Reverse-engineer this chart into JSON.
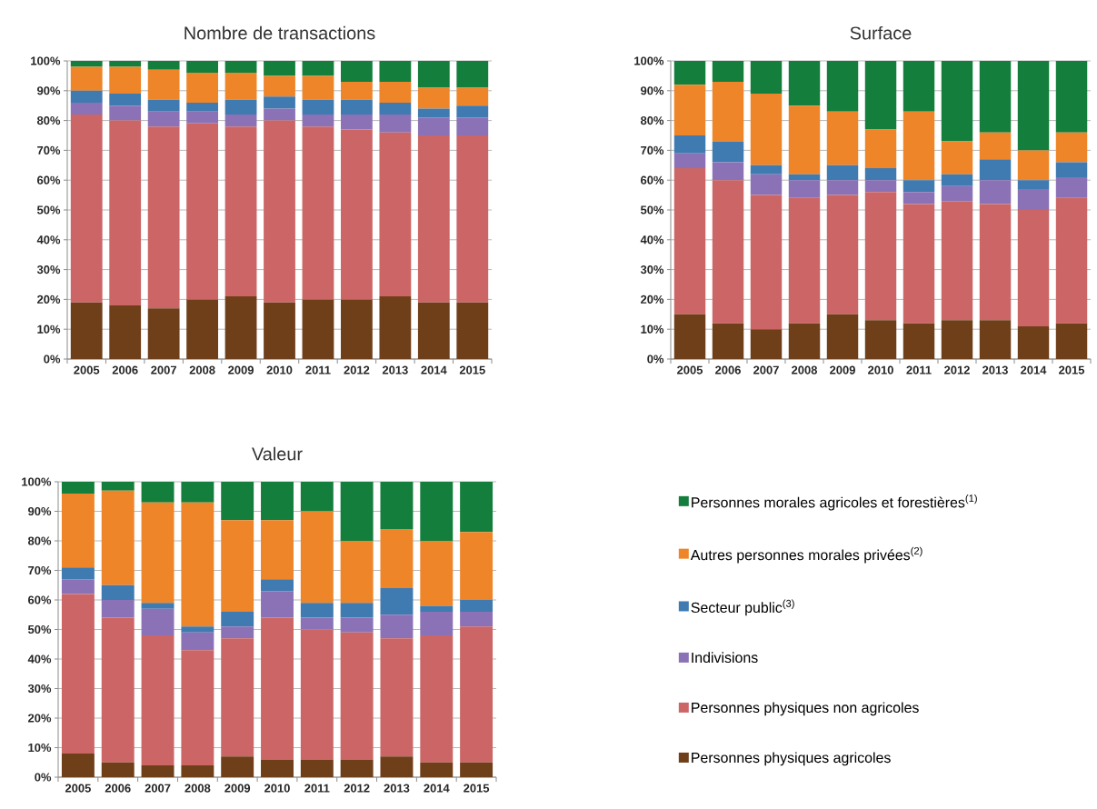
{
  "chart_data": [
    {
      "type": "bar",
      "stacked": true,
      "title": "Nombre de transactions",
      "categories": [
        "2005",
        "2006",
        "2007",
        "2008",
        "2009",
        "2010",
        "2011",
        "2012",
        "2013",
        "2014",
        "2015"
      ],
      "ylim": [
        0,
        100
      ],
      "yticks": [
        {
          "value": 0,
          "label": "0%"
        },
        {
          "value": 10,
          "label": "10%"
        },
        {
          "value": 20,
          "label": "20%"
        },
        {
          "value": 30,
          "label": "30%"
        },
        {
          "value": 40,
          "label": "40%"
        },
        {
          "value": 50,
          "label": "50%"
        },
        {
          "value": 60,
          "label": "60%"
        },
        {
          "value": 70,
          "label": "70%"
        },
        {
          "value": 80,
          "label": "80%"
        },
        {
          "value": 90,
          "label": "90%"
        },
        {
          "value": 100,
          "label": "100%"
        }
      ],
      "grid": "y",
      "legend": false,
      "series": [
        {
          "color": "#6f3f1a",
          "values": [
            19,
            18,
            17,
            20,
            21,
            19,
            20,
            20,
            21,
            19,
            19
          ]
        },
        {
          "color": "#cc6666",
          "values": [
            63,
            62,
            61,
            59,
            57,
            61,
            58,
            57,
            55,
            56,
            56
          ]
        },
        {
          "color": "#8b72b6",
          "values": [
            4,
            5,
            5,
            4,
            4,
            4,
            4,
            5,
            6,
            6,
            6
          ]
        },
        {
          "color": "#3f7ab0",
          "values": [
            4,
            4,
            4,
            3,
            5,
            4,
            5,
            5,
            4,
            3,
            4
          ]
        },
        {
          "color": "#ee8529",
          "values": [
            8,
            9,
            10,
            10,
            9,
            7,
            8,
            6,
            7,
            7,
            6
          ]
        },
        {
          "color": "#147f3c",
          "values": [
            2,
            2,
            3,
            4,
            4,
            5,
            5,
            7,
            7,
            9,
            9
          ]
        }
      ]
    },
    {
      "type": "bar",
      "stacked": true,
      "title": "Surface",
      "categories": [
        "2005",
        "2006",
        "2007",
        "2008",
        "2009",
        "2010",
        "2011",
        "2012",
        "2013",
        "2014",
        "2015"
      ],
      "ylim": [
        0,
        100
      ],
      "yticks": [
        {
          "value": 0,
          "label": "0%"
        },
        {
          "value": 10,
          "label": "10%"
        },
        {
          "value": 20,
          "label": "20%"
        },
        {
          "value": 30,
          "label": "30%"
        },
        {
          "value": 40,
          "label": "40%"
        },
        {
          "value": 50,
          "label": "50%"
        },
        {
          "value": 60,
          "label": "60%"
        },
        {
          "value": 70,
          "label": "70%"
        },
        {
          "value": 80,
          "label": "80%"
        },
        {
          "value": 90,
          "label": "90%"
        },
        {
          "value": 100,
          "label": "100%"
        }
      ],
      "grid": "y",
      "legend": false,
      "series": [
        {
          "color": "#6f3f1a",
          "values": [
            15,
            12,
            10,
            12,
            15,
            13,
            12,
            13,
            13,
            11,
            12
          ]
        },
        {
          "color": "#cc6666",
          "values": [
            49,
            48,
            45,
            42,
            40,
            43,
            40,
            40,
            39,
            39,
            42
          ]
        },
        {
          "color": "#8b72b6",
          "values": [
            5,
            6,
            7,
            6,
            5,
            4,
            4,
            5,
            8,
            7,
            7
          ]
        },
        {
          "color": "#3f7ab0",
          "values": [
            6,
            7,
            3,
            2,
            5,
            4,
            4,
            4,
            7,
            3,
            5
          ]
        },
        {
          "color": "#ee8529",
          "values": [
            17,
            20,
            24,
            23,
            18,
            13,
            23,
            11,
            9,
            10,
            10
          ]
        },
        {
          "color": "#147f3c",
          "values": [
            8,
            7,
            11,
            15,
            17,
            23,
            17,
            27,
            24,
            30,
            24
          ]
        }
      ]
    },
    {
      "type": "bar",
      "stacked": true,
      "title": "Valeur",
      "categories": [
        "2005",
        "2006",
        "2007",
        "2008",
        "2009",
        "2010",
        "2011",
        "2012",
        "2013",
        "2014",
        "2015"
      ],
      "ylim": [
        0,
        100
      ],
      "yticks": [
        {
          "value": 0,
          "label": "0%"
        },
        {
          "value": 10,
          "label": "10%"
        },
        {
          "value": 20,
          "label": "20%"
        },
        {
          "value": 30,
          "label": "30%"
        },
        {
          "value": 40,
          "label": "40%"
        },
        {
          "value": 50,
          "label": "50%"
        },
        {
          "value": 60,
          "label": "60%"
        },
        {
          "value": 70,
          "label": "70%"
        },
        {
          "value": 80,
          "label": "80%"
        },
        {
          "value": 90,
          "label": "90%"
        },
        {
          "value": 100,
          "label": "100%"
        }
      ],
      "grid": "y",
      "legend": "right",
      "series": [
        {
          "name": "Personnes physiques agricoles",
          "color": "#6f3f1a",
          "values": [
            8,
            5,
            4,
            4,
            7,
            6,
            6,
            6,
            7,
            5,
            5
          ]
        },
        {
          "name": "Personnes physiques non agricoles",
          "color": "#cc6666",
          "values": [
            54,
            49,
            44,
            39,
            40,
            48,
            44,
            43,
            40,
            43,
            46
          ]
        },
        {
          "name": "Indivisions",
          "color": "#8b72b6",
          "values": [
            5,
            6,
            9,
            6,
            4,
            9,
            4,
            5,
            8,
            8,
            5
          ]
        },
        {
          "name": "Secteur public$^{(3)}$",
          "color": "#3f7ab0",
          "values": [
            4,
            5,
            2,
            2,
            5,
            4,
            5,
            5,
            9,
            2,
            4
          ]
        },
        {
          "name": "Autres personnes morales privées$^{(2)}$",
          "color": "#ee8529",
          "values": [
            25,
            32,
            34,
            42,
            31,
            20,
            31,
            21,
            20,
            22,
            23
          ]
        },
        {
          "name": "Personnes morales agricoles et forestières$^{(1)}$",
          "color": "#147f3c",
          "values": [
            4,
            3,
            7,
            7,
            13,
            13,
            10,
            20,
            16,
            20,
            17
          ]
        }
      ]
    }
  ]
}
